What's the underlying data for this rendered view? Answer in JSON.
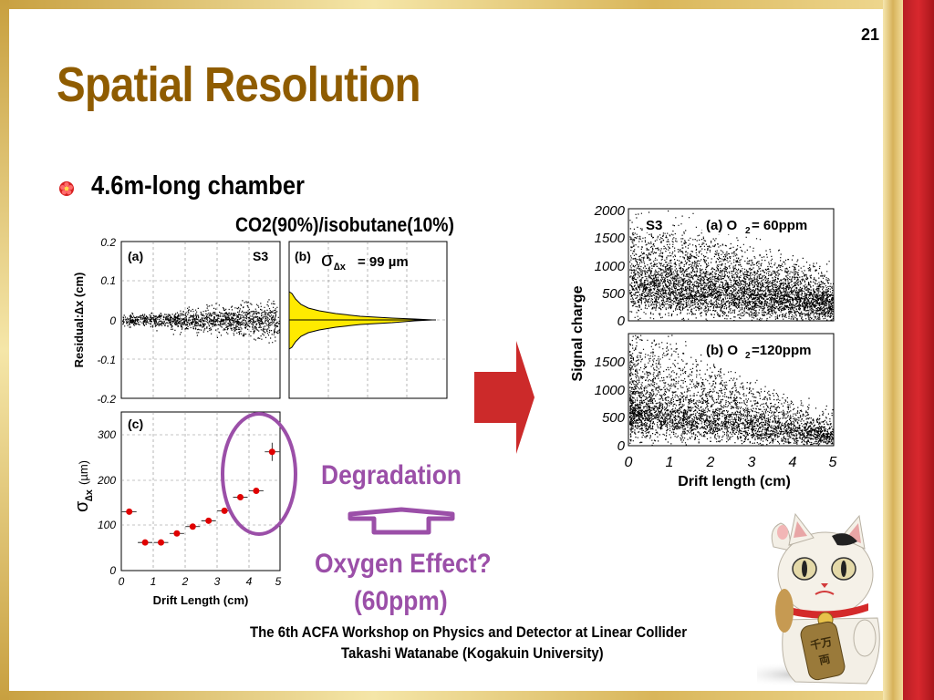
{
  "slide": {
    "title": "Spatial Resolution",
    "page_number": "21",
    "bullet": "4.6m-long chamber",
    "gas_mixture": "CO2(90%)/isobutane(10%)",
    "degradation_label": "Degradation",
    "oxygen_effect_label": "Oxygen Effect?",
    "oxygen_ppm_label": "(60ppm)",
    "footer_line1": "The 6th ACFA Workshop on Physics and Detector at Linear Collider",
    "footer_line2": "Takashi Watanabe (Kogakuin University)",
    "colors": {
      "title": "#8f5c00",
      "accent_purple": "#9b4fa8",
      "arrow_red": "#cc2a2a",
      "band_red": "#d8282e"
    }
  },
  "left_plots": {
    "panel_a": {
      "tag": "(a)",
      "run": "S3",
      "ylabel": "Residual:∆x (cm)",
      "yticks": [
        "0.2",
        "0.1",
        "0",
        "-0.1",
        "-0.2"
      ]
    },
    "panel_b": {
      "tag": "(b)",
      "sigma_prefix": "σ",
      "sigma_sub": "∆x",
      "sigma_value": "= 99 µm"
    },
    "panel_c": {
      "tag": "(c)",
      "ylabel_sym": "σ",
      "ylabel_sub": "∆x",
      "ylabel_unit": "(µm)",
      "xlabel": "Drift Length (cm)",
      "yticks": [
        "300",
        "200",
        "100",
        "0"
      ],
      "xticks": [
        "0",
        "1",
        "2",
        "3",
        "4",
        "5"
      ]
    }
  },
  "right_plots": {
    "panel_a": {
      "run": "S3",
      "tag": "(a) O",
      "o2_sub": "2",
      "o2_value": "= 60ppm",
      "yticks": [
        "2000",
        "1500",
        "1000",
        "500",
        "0"
      ]
    },
    "panel_b": {
      "tag": "(b) O",
      "o2_sub": "2",
      "o2_value": "=120ppm",
      "yticks": [
        "1500",
        "1000",
        "500",
        "0"
      ]
    },
    "ylabel": "Signal charge",
    "xlabel": "Drift length (cm)",
    "xticks": [
      "0",
      "1",
      "2",
      "3",
      "4",
      "5"
    ]
  },
  "chart_data": [
    {
      "type": "scatter",
      "panel": "(c)",
      "xlabel": "Drift Length (cm)",
      "ylabel": "σ∆x (µm)",
      "xlim": [
        0,
        5
      ],
      "ylim": [
        0,
        350
      ],
      "x": [
        0.25,
        0.75,
        1.25,
        1.75,
        2.25,
        2.75,
        3.25,
        3.75,
        4.25,
        4.75
      ],
      "y": [
        130,
        62,
        62,
        82,
        97,
        110,
        132,
        162,
        176,
        262
      ],
      "marker_color": "#e00000"
    }
  ]
}
